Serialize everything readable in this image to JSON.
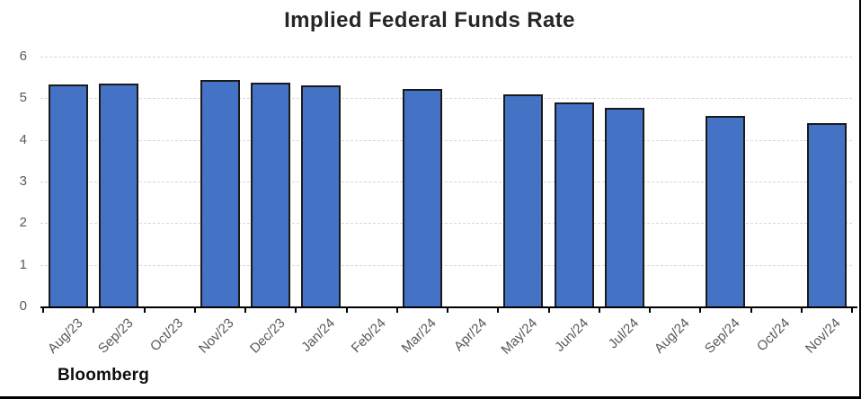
{
  "source_label": "Bloomberg",
  "chart_data": {
    "type": "bar",
    "title": "Implied Federal Funds Rate",
    "categories": [
      "Aug/23",
      "Sep/23",
      "Oct/23",
      "Nov/23",
      "Dec/23",
      "Jan/24",
      "Feb/24",
      "Mar/24",
      "Apr/24",
      "May/24",
      "Jun/24",
      "Jul/24",
      "Aug/24",
      "Sep/24",
      "Oct/24",
      "Nov/24"
    ],
    "values": [
      5.33,
      5.36,
      null,
      5.43,
      5.38,
      5.3,
      null,
      5.23,
      null,
      5.09,
      4.91,
      4.77,
      null,
      4.57,
      null,
      4.4
    ],
    "xlabel": "",
    "ylabel": "",
    "ylim": [
      0,
      6
    ],
    "yticks": [
      0,
      1,
      2,
      3,
      4,
      5,
      6
    ],
    "grid": true,
    "legend_position": "none",
    "colors": {
      "bar_fill": "#4472C4",
      "bar_border": "#1a1a1a",
      "gridline": "#d9d9d9",
      "axis_labels": "#595959",
      "title_text": "#262626",
      "axis_line": "#000000"
    }
  }
}
